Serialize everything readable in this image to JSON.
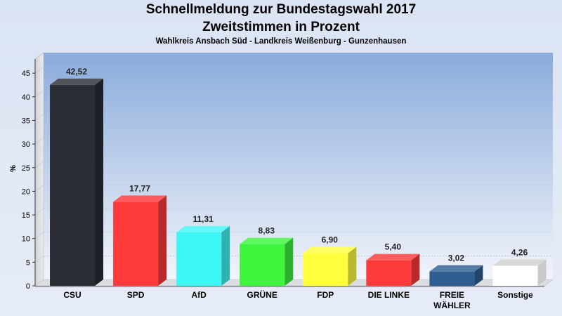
{
  "chart_data": {
    "type": "bar",
    "title": "Schnellmeldung zur Bundestagswahl 2017",
    "subtitle": "Zweitstimmen in Prozent",
    "subtitle2": "Wahlkreis Ansbach Süd - Landkreis Weißenburg - Gunzenhausen",
    "ylabel": "%",
    "ylim": [
      0,
      48
    ],
    "yticks": [
      0,
      5,
      10,
      15,
      20,
      25,
      30,
      35,
      40,
      45
    ],
    "categories": [
      "CSU",
      "SPD",
      "AfD",
      "GRÜNE",
      "FDP",
      "DIE LINKE",
      "FREIE WÄHLER",
      "Sonstige"
    ],
    "category_lines": [
      [
        "CSU"
      ],
      [
        "SPD"
      ],
      [
        "AfD"
      ],
      [
        "GRÜNE"
      ],
      [
        "FDP"
      ],
      [
        "DIE LINKE"
      ],
      [
        "FREIE",
        "WÄHLER"
      ],
      [
        "Sonstige"
      ]
    ],
    "values": [
      42.52,
      17.77,
      11.31,
      8.83,
      6.9,
      5.4,
      3.02,
      4.26
    ],
    "value_labels": [
      "42,52",
      "17,77",
      "11,31",
      "8,83",
      "6,90",
      "5,40",
      "3,02",
      "4,26"
    ],
    "colors": [
      "#2a2d36",
      "#ff3a3a",
      "#3ff6f6",
      "#3ef53e",
      "#ffff3e",
      "#ff3a3a",
      "#2f5e92",
      "#ffffff"
    ],
    "grid": true
  }
}
